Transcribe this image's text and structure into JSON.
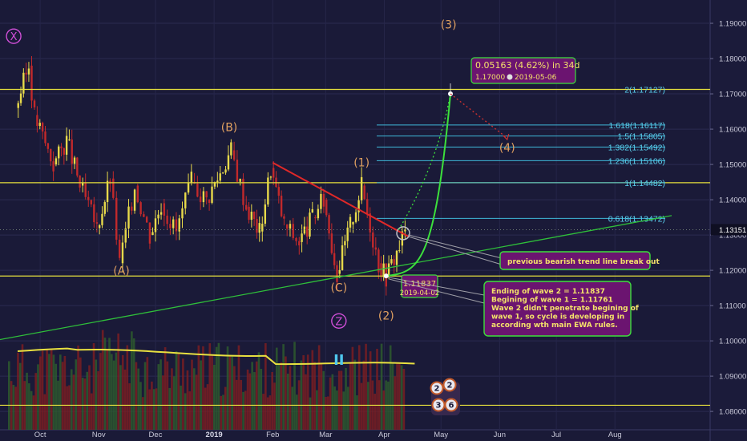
{
  "chart_data": {
    "type": "candlestick",
    "instrument_price_axis": {
      "ticks": [
        "1.19000",
        "1.18000",
        "1.17000",
        "1.16000",
        "1.15000",
        "1.14000",
        "1.13000",
        "1.12000",
        "1.11000",
        "1.10000",
        "1.09000",
        "1.08000"
      ],
      "ylim": [
        1.0748,
        1.1966
      ],
      "current_price": "1.13151"
    },
    "time_axis": {
      "ticks": [
        "Oct",
        "Nov",
        "Dec",
        "2019",
        "Feb",
        "Mar",
        "Apr",
        "May",
        "Jun",
        "Jul",
        "Aug"
      ]
    },
    "price_path": [
      [
        "2018-09-18",
        1.166
      ],
      [
        "2018-09-25",
        1.178
      ],
      [
        "2018-09-28",
        1.164
      ],
      [
        "2018-10-08",
        1.15
      ],
      [
        "2018-10-15",
        1.157
      ],
      [
        "2018-10-22",
        1.144
      ],
      [
        "2018-10-31",
        1.132
      ],
      [
        "2018-11-07",
        1.146
      ],
      [
        "2018-11-12",
        1.122
      ],
      [
        "2018-11-20",
        1.144
      ],
      [
        "2018-11-28",
        1.13
      ],
      [
        "2018-12-04",
        1.139
      ],
      [
        "2018-12-12",
        1.131
      ],
      [
        "2018-12-20",
        1.145
      ],
      [
        "2018-12-28",
        1.14
      ],
      [
        "2019-01-10",
        1.154
      ],
      [
        "2019-01-18",
        1.138
      ],
      [
        "2019-01-25",
        1.131
      ],
      [
        "2019-01-31",
        1.149
      ],
      [
        "2019-02-07",
        1.133
      ],
      [
        "2019-02-15",
        1.128
      ],
      [
        "2019-02-22",
        1.135
      ],
      [
        "2019-02-28",
        1.14
      ],
      [
        "2019-03-07",
        1.119
      ],
      [
        "2019-03-14",
        1.133
      ],
      [
        "2019-03-20",
        1.144
      ],
      [
        "2019-03-29",
        1.122
      ],
      [
        "2019-04-02",
        1.1184
      ],
      [
        "2019-04-09",
        1.127
      ],
      [
        "2019-04-12",
        1.1315
      ]
    ],
    "horizontal_levels": [
      {
        "value": 1.17127,
        "color": "#e5df3c"
      },
      {
        "value": 1.14482,
        "color": "#e5df3c"
      },
      {
        "value": 1.11837,
        "color": "#e5df3c"
      },
      {
        "value": 1.08175,
        "color": "#e5df3c"
      }
    ],
    "fibonacci_levels": [
      {
        "label": "2(1.17127)",
        "value": 1.17127
      },
      {
        "label": "1.618(1.16117)",
        "value": 1.16117
      },
      {
        "label": "1.5(1.15805)",
        "value": 1.15805
      },
      {
        "label": "1.382(1.15492)",
        "value": 1.15492
      },
      {
        "label": "1.236(1.15106)",
        "value": 1.15106
      },
      {
        "label": "1(1.14482)",
        "value": 1.14482
      },
      {
        "label": "0.618(1.13472)",
        "value": 1.13472
      }
    ],
    "trend_lines": [
      {
        "name": "bearish",
        "from": [
          "2019-02-01",
          1.1505
        ],
        "to": [
          "2019-04-14",
          1.1295
        ],
        "color": "#e02828"
      },
      {
        "name": "rising support",
        "from": [
          "2018-09-01",
          1.0995
        ],
        "to": [
          "2019-08-31",
          1.1355
        ],
        "color": "#2fbf3a"
      }
    ],
    "projection": {
      "from": [
        "2019-04-12",
        1.1315
      ],
      "to": [
        "2019-05-06",
        1.17
      ],
      "then": [
        "2019-06-05",
        1.1575
      ]
    },
    "wave_labels": [
      {
        "text": "X",
        "date": "2018-09-17",
        "price": 1.1852,
        "style": "circled",
        "color": "#d04fd8"
      },
      {
        "text": "(A)",
        "date": "2018-11-13",
        "price": 1.1188,
        "color": "#e0a060"
      },
      {
        "text": "(B)",
        "date": "2019-01-09",
        "price": 1.1595,
        "color": "#e0a060"
      },
      {
        "text": "(1)",
        "date": "2019-03-20",
        "price": 1.1495,
        "color": "#e0a060"
      },
      {
        "text": "(C)",
        "date": "2019-03-08",
        "price": 1.114,
        "color": "#e0a060"
      },
      {
        "text": "Z",
        "date": "2019-03-08",
        "price": 1.1045,
        "style": "circled",
        "color": "#d04fd8"
      },
      {
        "text": "II",
        "date": "2019-03-08",
        "price": 1.0932,
        "color": "#4fc8ef"
      },
      {
        "text": "(2)",
        "date": "2019-04-02",
        "price": 1.106,
        "color": "#e0a060"
      },
      {
        "text": "(3)",
        "date": "2019-05-05",
        "price": 1.1885,
        "color": "#e0a060"
      },
      {
        "text": "(4)",
        "date": "2019-06-05",
        "price": 1.1537,
        "color": "#e0a060"
      }
    ],
    "annotations": {
      "measure_box": {
        "line1": "0.05163 (4.62%) in 34d",
        "price": "1.17000",
        "date": "2019-05-06"
      },
      "low_box": {
        "price": "1.11837",
        "date": "2019-04-02"
      },
      "breakout_note": "previous bearish trend line break out",
      "wave_note": [
        "Ending of wave 2 = 1.11837",
        "Begining of wave 1 = 1.11761",
        "Wave 2 didn't penetrate begining of",
        "wave 1, so cycle is developing in",
        "according wth main EWA rules."
      ]
    },
    "volume_ma_color": "#e8e040",
    "event_badges": [
      "2",
      "2",
      "3",
      "6"
    ]
  }
}
